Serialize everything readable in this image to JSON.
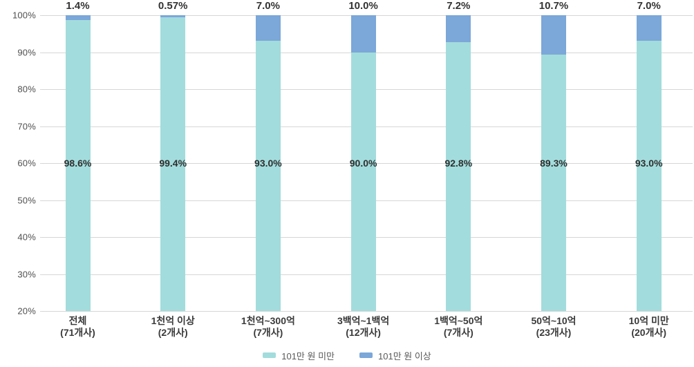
{
  "chart_data": {
    "type": "bar",
    "stacked": true,
    "stacked_percent": true,
    "grid": true,
    "legend_position": "bottom",
    "ylim": [
      20,
      100
    ],
    "yticks": [
      100,
      90,
      80,
      70,
      60,
      50,
      40,
      30,
      20
    ],
    "ytick_labels": [
      "100%",
      "90%",
      "80%",
      "70%",
      "60%",
      "50%",
      "40%",
      "30%",
      "20%"
    ],
    "categories": [
      {
        "name": "전체",
        "count": "(71개사)"
      },
      {
        "name": "1천억 이상",
        "count": "(2개사)"
      },
      {
        "name": "1천억~300억",
        "count": "(7개사)"
      },
      {
        "name": "3백억~1백억",
        "count": "(12개사)"
      },
      {
        "name": "1백억~50억",
        "count": "(7개사)"
      },
      {
        "name": "50억~10억",
        "count": "(23개사)"
      },
      {
        "name": "10억 미만",
        "count": "(20개사)"
      }
    ],
    "series": [
      {
        "name": "101만 원 미만",
        "color": "#a3dcdc",
        "values": [
          98.6,
          99.4,
          93.0,
          90.0,
          92.8,
          89.3,
          93.0
        ],
        "value_labels": [
          "98.6%",
          "99.4%",
          "93.0%",
          "90.0%",
          "92.8%",
          "89.3%",
          "93.0%"
        ]
      },
      {
        "name": "101만 원 이상",
        "color": "#7ba7d9",
        "values": [
          1.4,
          0.57,
          7.0,
          10.0,
          7.2,
          10.7,
          7.0
        ],
        "value_labels": [
          "1.4%",
          "0.57%",
          "7.0%",
          "10.0%",
          "7.2%",
          "10.7%",
          "7.0%"
        ]
      }
    ]
  },
  "colors": {
    "grid": "#d6d6d6",
    "tick_text": "#4f4f4f",
    "value_text": "#333333",
    "category_text": "#3a3a3a",
    "legend_text": "#595959",
    "background": "#ffffff"
  }
}
